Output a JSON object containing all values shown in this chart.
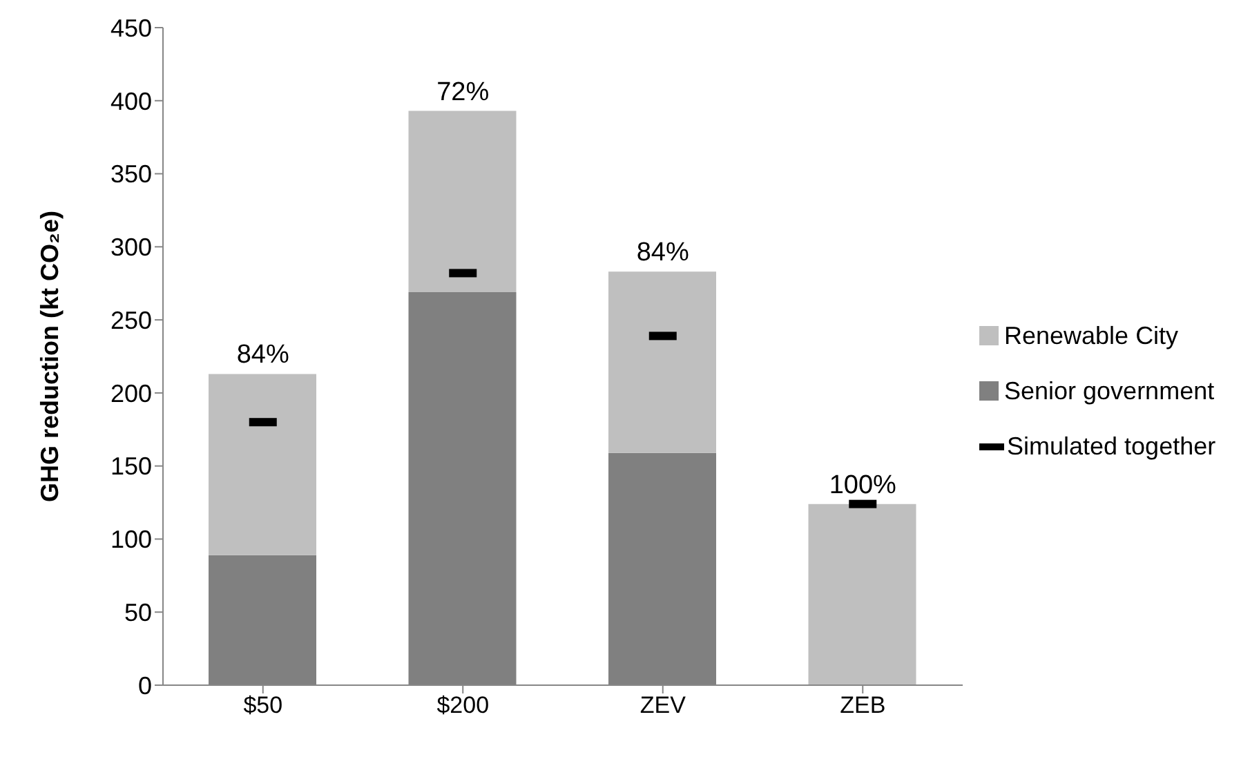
{
  "chart_data": {
    "type": "bar",
    "stacked": true,
    "ylabel": "GHG reduction (kt CO₂e)",
    "categories": [
      "$50",
      "$200",
      "ZEV",
      "ZEB"
    ],
    "series": [
      {
        "name": "Senior government",
        "color": "#808080",
        "values": [
          89,
          269,
          159,
          0
        ]
      },
      {
        "name": "Renewable City",
        "color": "#bfbfbf",
        "values": [
          124,
          124,
          124,
          124
        ]
      },
      {
        "name": "Simulated together",
        "type": "scatter",
        "color": "#000000",
        "x": [
          "$50",
          "$200",
          "ZEV",
          "ZEB"
        ],
        "values": [
          180,
          282,
          239,
          124
        ]
      }
    ],
    "annotations": [
      {
        "text": "84%",
        "x": "$50",
        "y": 213
      },
      {
        "text": "72%",
        "x": "$200",
        "y": 393
      },
      {
        "text": "84%",
        "x": "ZEV",
        "y": 283
      },
      {
        "text": "100%",
        "x": "ZEB",
        "y": 124
      }
    ],
    "ylim": [
      0,
      450
    ],
    "yticks": [
      0,
      50,
      100,
      150,
      200,
      250,
      300,
      350,
      400,
      450
    ],
    "grid": false,
    "legend": "right"
  }
}
